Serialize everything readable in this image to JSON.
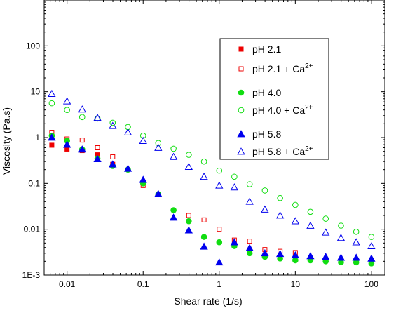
{
  "chart_data": {
    "type": "scatter",
    "xlabel": "Shear rate (1/s)",
    "ylabel": "Viscosity (Pa.s)",
    "xscale": "log",
    "yscale": "log",
    "xlim": [
      0.005,
      150
    ],
    "ylim": [
      0.001,
      1000
    ],
    "x_ticks": [
      {
        "value": 0.01,
        "label": "0.01"
      },
      {
        "value": 0.1,
        "label": "0.1"
      },
      {
        "value": 1,
        "label": "1"
      },
      {
        "value": 10,
        "label": "10"
      },
      {
        "value": 100,
        "label": "100"
      }
    ],
    "y_ticks": [
      {
        "value": 0.001,
        "label": "1E-3"
      },
      {
        "value": 0.01,
        "label": "0.01"
      },
      {
        "value": 0.1,
        "label": "0.1"
      },
      {
        "value": 1,
        "label": "1"
      },
      {
        "value": 10,
        "label": "10"
      },
      {
        "value": 100,
        "label": "100"
      }
    ],
    "grid": false,
    "legend_position": "top-right",
    "series": [
      {
        "name": "pH 2.1",
        "marker": "square",
        "filled": true,
        "color": "#ee0000",
        "x": [
          0.0063,
          0.01,
          0.0158,
          0.0251,
          0.0398
        ],
        "y": [
          0.68,
          0.56,
          0.52,
          0.42,
          0.26
        ]
      },
      {
        "name": "pH 2.1 + Ca2+",
        "marker": "square",
        "filled": false,
        "color": "#ee0000",
        "x": [
          0.0063,
          0.01,
          0.0158,
          0.0251,
          0.0398,
          0.1,
          0.398,
          0.631,
          1,
          1.58,
          2.51,
          3.98,
          6.31,
          10
        ],
        "y": [
          1.3,
          0.93,
          0.88,
          0.6,
          0.38,
          0.09,
          0.02,
          0.016,
          0.01,
          0.0058,
          0.0055,
          0.0036,
          0.0033,
          0.0031
        ]
      },
      {
        "name": "pH 4.0",
        "marker": "circle",
        "filled": true,
        "color": "#11dd11",
        "x": [
          0.0063,
          0.01,
          0.0158,
          0.0251,
          0.0398,
          0.0631,
          0.1,
          0.158,
          0.251,
          0.398,
          0.631,
          1,
          1.58,
          2.51,
          3.98,
          6.31,
          10,
          15.8,
          25.1,
          39.8,
          63.1,
          100
        ],
        "y": [
          1.1,
          0.85,
          0.55,
          0.35,
          0.24,
          0.2,
          0.1,
          0.058,
          0.026,
          0.015,
          0.0068,
          0.0052,
          0.0043,
          0.003,
          0.0025,
          0.0023,
          0.0021,
          0.0021,
          0.002,
          0.0019,
          0.0019,
          0.0018
        ]
      },
      {
        "name": "pH 4.0 + Ca2+",
        "marker": "circle",
        "filled": false,
        "color": "#11dd11",
        "x": [
          0.0063,
          0.01,
          0.0158,
          0.0251,
          0.0398,
          0.0631,
          0.1,
          0.158,
          0.251,
          0.398,
          0.631,
          1,
          1.58,
          2.51,
          3.98,
          6.31,
          10,
          15.8,
          25.1,
          39.8,
          63.1,
          100
        ],
        "y": [
          5.6,
          4.0,
          2.8,
          2.6,
          2.1,
          1.7,
          1.1,
          0.76,
          0.57,
          0.42,
          0.3,
          0.19,
          0.14,
          0.096,
          0.07,
          0.048,
          0.034,
          0.024,
          0.017,
          0.012,
          0.0088,
          0.0068
        ]
      },
      {
        "name": "pH 5.8",
        "marker": "triangle",
        "filled": true,
        "color": "#0000ee",
        "x": [
          0.0063,
          0.01,
          0.0158,
          0.0251,
          0.0398,
          0.0631,
          0.1,
          0.158,
          0.251,
          0.398,
          0.631,
          1,
          1.58,
          2.51,
          3.98,
          6.31,
          10,
          15.8,
          25.1,
          39.8,
          63.1,
          100
        ],
        "y": [
          1.0,
          0.7,
          0.55,
          0.34,
          0.26,
          0.21,
          0.12,
          0.059,
          0.018,
          0.0095,
          0.0042,
          0.0019,
          0.0052,
          0.0039,
          0.003,
          0.0029,
          0.0027,
          0.0026,
          0.0025,
          0.0024,
          0.0024,
          0.0023
        ]
      },
      {
        "name": "pH 5.8 + Ca2+",
        "marker": "triangle",
        "filled": false,
        "color": "#0000ee",
        "x": [
          0.0063,
          0.01,
          0.0158,
          0.0251,
          0.0398,
          0.0631,
          0.1,
          0.158,
          0.251,
          0.398,
          0.631,
          1,
          1.58,
          2.51,
          3.98,
          6.31,
          10,
          15.8,
          25.1,
          39.8,
          63.1,
          100
        ],
        "y": [
          9.0,
          6.2,
          4.1,
          2.7,
          1.8,
          1.3,
          0.85,
          0.6,
          0.38,
          0.23,
          0.14,
          0.09,
          0.082,
          0.04,
          0.027,
          0.02,
          0.015,
          0.012,
          0.0085,
          0.0065,
          0.0052,
          0.0043
        ]
      }
    ],
    "legend": [
      {
        "base": "pH 2.1",
        "sup": ""
      },
      {
        "base": "pH 2.1 + Ca",
        "sup": "2+"
      },
      {
        "base": "pH 4.0",
        "sup": ""
      },
      {
        "base": "pH 4.0 + Ca",
        "sup": "2+"
      },
      {
        "base": "pH 5.8",
        "sup": ""
      },
      {
        "base": "pH 5.8 + Ca",
        "sup": "2+"
      }
    ]
  }
}
